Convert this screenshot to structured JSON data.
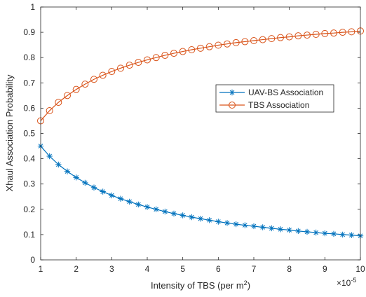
{
  "chart_data": {
    "type": "line",
    "title": "",
    "xlabel": "Intensity of TBS (per m",
    "xlabel_superscript": "2",
    "xlabel_close": ")",
    "ylabel": "Xhaul Association Probability",
    "x_exponent_base": "×10",
    "x_exponent_power": "-5",
    "xlim": [
      1,
      10
    ],
    "ylim": [
      0,
      1
    ],
    "xticks": [
      "1",
      "2",
      "3",
      "4",
      "5",
      "6",
      "7",
      "8",
      "9",
      "10"
    ],
    "yticks": [
      "0",
      "0.1",
      "0.2",
      "0.3",
      "0.4",
      "0.5",
      "0.6",
      "0.7",
      "0.8",
      "0.9",
      "1"
    ],
    "grid": false,
    "legend_position": "center-right",
    "x": [
      1.0,
      1.25,
      1.5,
      1.75,
      2.0,
      2.25,
      2.5,
      2.75,
      3.0,
      3.25,
      3.5,
      3.75,
      4.0,
      4.25,
      4.5,
      4.75,
      5.0,
      5.25,
      5.5,
      5.75,
      6.0,
      6.25,
      6.5,
      6.75,
      7.0,
      7.25,
      7.5,
      7.75,
      8.0,
      8.25,
      8.5,
      8.75,
      9.0,
      9.25,
      9.5,
      9.75,
      10.0
    ],
    "series": [
      {
        "name": "UAV-BS Association",
        "color": "#0072BD",
        "marker": "star",
        "values": [
          0.45,
          0.41,
          0.377,
          0.35,
          0.326,
          0.305,
          0.286,
          0.27,
          0.255,
          0.242,
          0.23,
          0.219,
          0.209,
          0.2,
          0.191,
          0.183,
          0.176,
          0.169,
          0.163,
          0.157,
          0.151,
          0.146,
          0.141,
          0.137,
          0.133,
          0.129,
          0.125,
          0.121,
          0.118,
          0.114,
          0.111,
          0.108,
          0.105,
          0.103,
          0.1,
          0.098,
          0.095
        ]
      },
      {
        "name": "TBS Association",
        "color": "#D95319",
        "marker": "circle",
        "values": [
          0.55,
          0.59,
          0.623,
          0.65,
          0.674,
          0.695,
          0.714,
          0.73,
          0.745,
          0.758,
          0.77,
          0.781,
          0.791,
          0.8,
          0.809,
          0.817,
          0.824,
          0.831,
          0.837,
          0.843,
          0.849,
          0.854,
          0.859,
          0.863,
          0.867,
          0.871,
          0.875,
          0.879,
          0.882,
          0.886,
          0.889,
          0.892,
          0.895,
          0.897,
          0.9,
          0.902,
          0.905
        ]
      }
    ]
  }
}
